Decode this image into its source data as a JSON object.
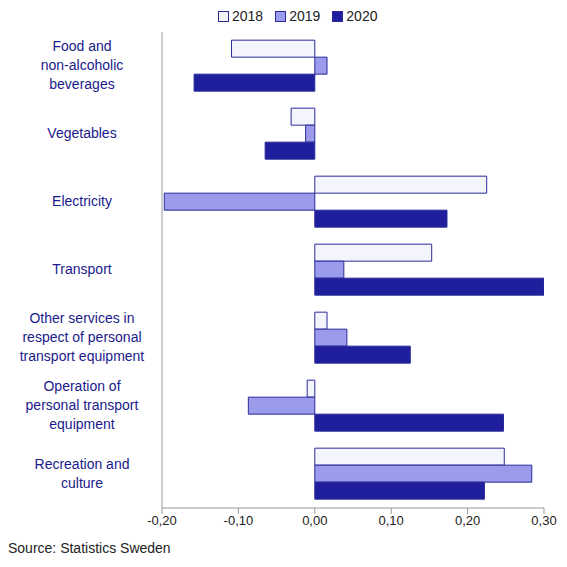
{
  "chart_data": {
    "type": "bar",
    "orientation": "horizontal",
    "source": "Source: Statistics Sweden",
    "categories": [
      "Food and non-alcoholic beverages",
      "Vegetables",
      "Electricity",
      "Transport",
      "Other services in respect of personal transport equipment",
      "Operation of personal transport equipment",
      "Recreation and culture"
    ],
    "series": [
      {
        "name": "2018",
        "color": "#f4f4fc",
        "values": [
          -0.109,
          -0.031,
          0.225,
          0.153,
          0.016,
          -0.01,
          0.248
        ]
      },
      {
        "name": "2019",
        "color": "#9b9bec",
        "values": [
          0.016,
          -0.012,
          -0.197,
          0.038,
          0.042,
          -0.087,
          0.284
        ]
      },
      {
        "name": "2020",
        "color": "#1f1f9e",
        "values": [
          -0.158,
          -0.065,
          0.173,
          0.3,
          0.125,
          0.247,
          0.222
        ]
      }
    ],
    "xlim": [
      -0.2,
      0.3
    ],
    "xticks": [
      {
        "value": -0.2,
        "label": "-0,20"
      },
      {
        "value": -0.1,
        "label": "-0,10"
      },
      {
        "value": 0,
        "label": "0,00"
      },
      {
        "value": 0.1,
        "label": "0,10"
      },
      {
        "value": 0.2,
        "label": "0,20"
      },
      {
        "value": 0.3,
        "label": "0,30"
      }
    ],
    "grid": false,
    "legend": "top"
  }
}
